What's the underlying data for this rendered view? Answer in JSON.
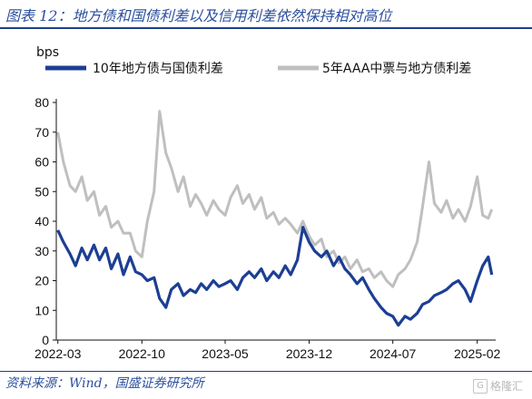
{
  "figure": {
    "title": "图表 12：地方债和国债利差以及信用利差依然保持相对高位",
    "source": "资料来源：Wind，国盛证券研究所",
    "watermark": "格隆汇"
  },
  "chart_data": {
    "type": "line",
    "ylabel": "bps",
    "ylim": [
      0,
      80
    ],
    "yticks": [
      0,
      10,
      20,
      30,
      40,
      50,
      60,
      70,
      80
    ],
    "xlim": [
      "2022-02-25",
      "2025-03-20"
    ],
    "xticks": [
      "2022-03",
      "2022-10",
      "2023-05",
      "2023-12",
      "2024-07",
      "2025-02"
    ],
    "legend_position": "top",
    "series": [
      {
        "name": "10年地方债与国债利差",
        "color": "#1c3f94",
        "points": [
          [
            "2022-03-01",
            37
          ],
          [
            "2022-03-15",
            33
          ],
          [
            "2022-04-01",
            29
          ],
          [
            "2022-04-15",
            25
          ],
          [
            "2022-05-01",
            31
          ],
          [
            "2022-05-15",
            27
          ],
          [
            "2022-06-01",
            32
          ],
          [
            "2022-06-15",
            27
          ],
          [
            "2022-07-01",
            31
          ],
          [
            "2022-07-15",
            24
          ],
          [
            "2022-08-01",
            29
          ],
          [
            "2022-08-15",
            22
          ],
          [
            "2022-09-01",
            28
          ],
          [
            "2022-09-15",
            23
          ],
          [
            "2022-10-01",
            22
          ],
          [
            "2022-10-15",
            20
          ],
          [
            "2022-11-01",
            21
          ],
          [
            "2022-11-15",
            14
          ],
          [
            "2022-12-01",
            11
          ],
          [
            "2022-12-15",
            17
          ],
          [
            "2023-01-01",
            19
          ],
          [
            "2023-01-15",
            15
          ],
          [
            "2023-02-01",
            17
          ],
          [
            "2023-02-15",
            16
          ],
          [
            "2023-03-01",
            19
          ],
          [
            "2023-03-15",
            17
          ],
          [
            "2023-04-01",
            20
          ],
          [
            "2023-04-15",
            18
          ],
          [
            "2023-05-01",
            19
          ],
          [
            "2023-05-15",
            20
          ],
          [
            "2023-06-01",
            17
          ],
          [
            "2023-06-15",
            21
          ],
          [
            "2023-07-01",
            23
          ],
          [
            "2023-07-15",
            21
          ],
          [
            "2023-08-01",
            24
          ],
          [
            "2023-08-15",
            20
          ],
          [
            "2023-09-01",
            23
          ],
          [
            "2023-09-15",
            21
          ],
          [
            "2023-10-01",
            25
          ],
          [
            "2023-10-15",
            22
          ],
          [
            "2023-11-01",
            27
          ],
          [
            "2023-11-15",
            38
          ],
          [
            "2023-12-01",
            33
          ],
          [
            "2023-12-15",
            30
          ],
          [
            "2024-01-01",
            28
          ],
          [
            "2024-01-15",
            30
          ],
          [
            "2024-02-01",
            25
          ],
          [
            "2024-02-15",
            28
          ],
          [
            "2024-03-01",
            24
          ],
          [
            "2024-03-15",
            22
          ],
          [
            "2024-04-01",
            19
          ],
          [
            "2024-04-15",
            21
          ],
          [
            "2024-05-01",
            17
          ],
          [
            "2024-05-15",
            14
          ],
          [
            "2024-06-01",
            11
          ],
          [
            "2024-06-15",
            9
          ],
          [
            "2024-07-01",
            8
          ],
          [
            "2024-07-15",
            5
          ],
          [
            "2024-08-01",
            8
          ],
          [
            "2024-08-15",
            7
          ],
          [
            "2024-09-01",
            9
          ],
          [
            "2024-09-15",
            12
          ],
          [
            "2024-10-01",
            13
          ],
          [
            "2024-10-15",
            15
          ],
          [
            "2024-11-01",
            16
          ],
          [
            "2024-11-15",
            17
          ],
          [
            "2024-12-01",
            19
          ],
          [
            "2024-12-15",
            20
          ],
          [
            "2025-01-01",
            17
          ],
          [
            "2025-01-15",
            13
          ],
          [
            "2025-02-01",
            20
          ],
          [
            "2025-02-15",
            25
          ],
          [
            "2025-03-01",
            28
          ],
          [
            "2025-03-10",
            22
          ]
        ]
      },
      {
        "name": "5年AAA中票与地方债利差",
        "color": "#bfbfbf",
        "points": [
          [
            "2022-03-01",
            70
          ],
          [
            "2022-03-15",
            60
          ],
          [
            "2022-04-01",
            52
          ],
          [
            "2022-04-15",
            50
          ],
          [
            "2022-05-01",
            55
          ],
          [
            "2022-05-15",
            47
          ],
          [
            "2022-06-01",
            50
          ],
          [
            "2022-06-15",
            42
          ],
          [
            "2022-07-01",
            45
          ],
          [
            "2022-07-15",
            38
          ],
          [
            "2022-08-01",
            40
          ],
          [
            "2022-08-15",
            36
          ],
          [
            "2022-09-01",
            36
          ],
          [
            "2022-09-15",
            30
          ],
          [
            "2022-10-01",
            28
          ],
          [
            "2022-10-15",
            40
          ],
          [
            "2022-11-01",
            50
          ],
          [
            "2022-11-15",
            77
          ],
          [
            "2022-12-01",
            63
          ],
          [
            "2022-12-15",
            58
          ],
          [
            "2023-01-01",
            50
          ],
          [
            "2023-01-15",
            55
          ],
          [
            "2023-02-01",
            45
          ],
          [
            "2023-02-15",
            49
          ],
          [
            "2023-03-01",
            46
          ],
          [
            "2023-03-15",
            42
          ],
          [
            "2023-04-01",
            47
          ],
          [
            "2023-04-15",
            44
          ],
          [
            "2023-05-01",
            42
          ],
          [
            "2023-05-15",
            48
          ],
          [
            "2023-06-01",
            52
          ],
          [
            "2023-06-15",
            46
          ],
          [
            "2023-07-01",
            49
          ],
          [
            "2023-07-15",
            44
          ],
          [
            "2023-08-01",
            48
          ],
          [
            "2023-08-15",
            41
          ],
          [
            "2023-09-01",
            43
          ],
          [
            "2023-09-15",
            39
          ],
          [
            "2023-10-01",
            41
          ],
          [
            "2023-10-15",
            39
          ],
          [
            "2023-11-01",
            36
          ],
          [
            "2023-11-15",
            40
          ],
          [
            "2023-12-01",
            35
          ],
          [
            "2023-12-15",
            32
          ],
          [
            "2024-01-01",
            34
          ],
          [
            "2024-01-15",
            28
          ],
          [
            "2024-02-01",
            30
          ],
          [
            "2024-02-15",
            26
          ],
          [
            "2024-03-01",
            28
          ],
          [
            "2024-03-15",
            24
          ],
          [
            "2024-04-01",
            27
          ],
          [
            "2024-04-15",
            23
          ],
          [
            "2024-05-01",
            24
          ],
          [
            "2024-05-15",
            21
          ],
          [
            "2024-06-01",
            23
          ],
          [
            "2024-06-15",
            20
          ],
          [
            "2024-07-01",
            18
          ],
          [
            "2024-07-15",
            22
          ],
          [
            "2024-08-01",
            24
          ],
          [
            "2024-08-15",
            27
          ],
          [
            "2024-09-01",
            33
          ],
          [
            "2024-09-15",
            45
          ],
          [
            "2024-10-01",
            60
          ],
          [
            "2024-10-15",
            46
          ],
          [
            "2024-11-01",
            43
          ],
          [
            "2024-11-15",
            47
          ],
          [
            "2024-12-01",
            41
          ],
          [
            "2024-12-15",
            44
          ],
          [
            "2025-01-01",
            40
          ],
          [
            "2025-01-15",
            45
          ],
          [
            "2025-02-01",
            55
          ],
          [
            "2025-02-15",
            42
          ],
          [
            "2025-03-01",
            41
          ],
          [
            "2025-03-10",
            44
          ]
        ]
      }
    ]
  }
}
